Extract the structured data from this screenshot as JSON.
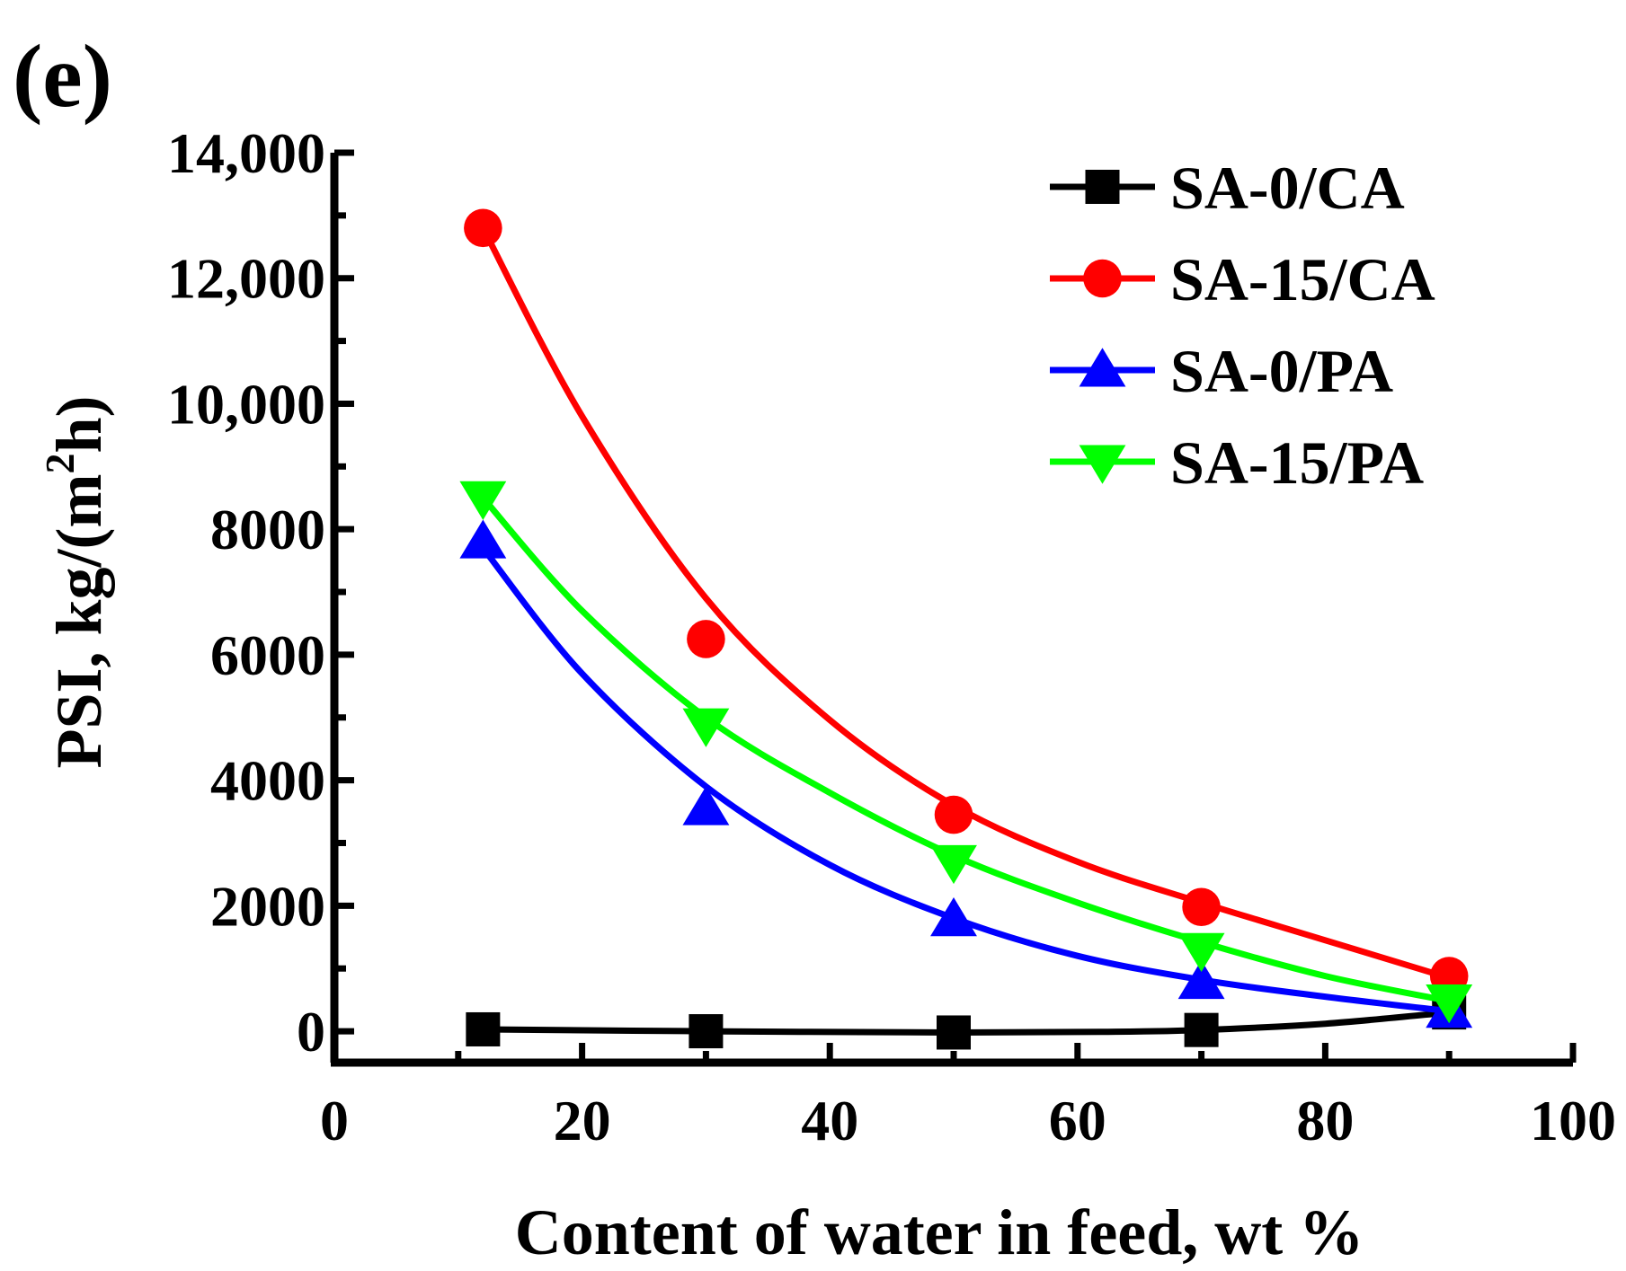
{
  "panel_label": "(e)",
  "chart_data": {
    "type": "line",
    "title": "",
    "xlabel": "Content of water in feed, wt %",
    "ylabel": "PSI, kg/(m",
    "ylabel_sup": "2",
    "ylabel_end": "h)",
    "xlim": [
      0,
      100
    ],
    "ylim": [
      -500,
      14000
    ],
    "x_ticks": [
      0,
      20,
      40,
      60,
      80,
      100
    ],
    "x_tick_labels": [
      "0",
      "20",
      "40",
      "60",
      "80",
      "100"
    ],
    "y_ticks": [
      0,
      2000,
      4000,
      6000,
      8000,
      10000,
      12000,
      14000
    ],
    "y_tick_labels": [
      "0",
      "2000",
      "4000",
      "6000",
      "8000",
      "10,000",
      "12,000",
      "14,000"
    ],
    "grid": false,
    "legend_position": "top-right",
    "series": [
      {
        "name": "SA-0/CA",
        "color": "#000000",
        "marker": "square",
        "x": [
          12,
          30,
          50,
          70,
          90
        ],
        "y": [
          30,
          0,
          -20,
          20,
          300
        ],
        "fit": [
          [
            12,
            30
          ],
          [
            30,
            0
          ],
          [
            50,
            -20
          ],
          [
            62,
            -10
          ],
          [
            70,
            20
          ],
          [
            80,
            120
          ],
          [
            90,
            300
          ]
        ]
      },
      {
        "name": "SA-15/CA",
        "color": "#ff0000",
        "marker": "circle",
        "x": [
          12,
          30,
          50,
          70,
          90
        ],
        "y": [
          12800,
          6250,
          3450,
          1980,
          880
        ],
        "fit": [
          [
            12,
            12800
          ],
          [
            20,
            9800
          ],
          [
            30,
            6900
          ],
          [
            40,
            4960
          ],
          [
            50,
            3600
          ],
          [
            60,
            2700
          ],
          [
            70,
            2050
          ],
          [
            80,
            1450
          ],
          [
            90,
            850
          ]
        ]
      },
      {
        "name": "SA-0/PA",
        "color": "#0000ff",
        "marker": "triangle-up",
        "x": [
          12,
          30,
          50,
          70,
          90
        ],
        "y": [
          7800,
          3550,
          1780,
          780,
          320
        ],
        "fit": [
          [
            12,
            7700
          ],
          [
            20,
            5700
          ],
          [
            30,
            3900
          ],
          [
            40,
            2650
          ],
          [
            50,
            1800
          ],
          [
            60,
            1200
          ],
          [
            70,
            820
          ],
          [
            80,
            550
          ],
          [
            90,
            320
          ]
        ]
      },
      {
        "name": "SA-15/PA",
        "color": "#00ff00",
        "marker": "triangle-down",
        "x": [
          12,
          30,
          50,
          70,
          90
        ],
        "y": [
          8500,
          4880,
          2700,
          1300,
          480
        ],
        "fit": [
          [
            12,
            8500
          ],
          [
            20,
            6700
          ],
          [
            30,
            5000
          ],
          [
            40,
            3800
          ],
          [
            50,
            2800
          ],
          [
            60,
            2050
          ],
          [
            70,
            1420
          ],
          [
            80,
            880
          ],
          [
            90,
            480
          ]
        ]
      }
    ]
  }
}
